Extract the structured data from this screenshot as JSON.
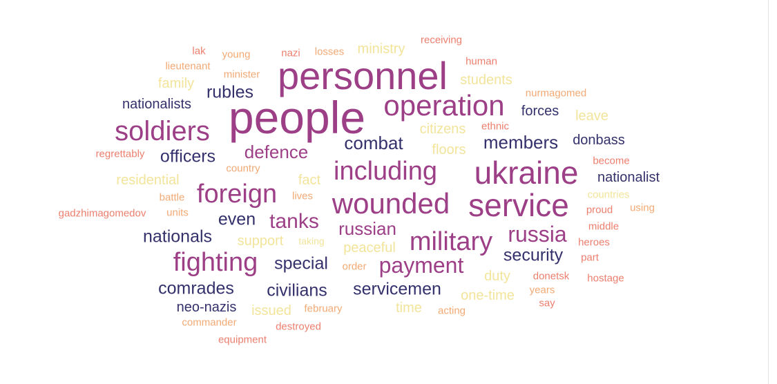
{
  "palette": {
    "navy": "#33306b",
    "magenta": "#9c3f86",
    "salmon": "#ec7f6e",
    "peach": "#f2a974",
    "yellow": "#f2e49b"
  },
  "words": [
    {
      "text": "people",
      "color": "magenta"
    },
    {
      "text": "personnel",
      "color": "magenta"
    },
    {
      "text": "ukraine",
      "color": "magenta"
    },
    {
      "text": "service",
      "color": "magenta"
    },
    {
      "text": "wounded",
      "color": "magenta"
    },
    {
      "text": "operation",
      "color": "magenta"
    },
    {
      "text": "soldiers",
      "color": "magenta"
    },
    {
      "text": "military",
      "color": "magenta"
    },
    {
      "text": "including",
      "color": "magenta"
    },
    {
      "text": "fighting",
      "color": "magenta"
    },
    {
      "text": "foreign",
      "color": "magenta"
    },
    {
      "text": "payment",
      "color": "magenta"
    },
    {
      "text": "russia",
      "color": "magenta"
    },
    {
      "text": "tanks",
      "color": "magenta"
    },
    {
      "text": "defence",
      "color": "magenta"
    },
    {
      "text": "russian",
      "color": "magenta"
    },
    {
      "text": "combat",
      "color": "navy"
    },
    {
      "text": "members",
      "color": "navy"
    },
    {
      "text": "officers",
      "color": "navy"
    },
    {
      "text": "rubles",
      "color": "navy"
    },
    {
      "text": "security",
      "color": "navy"
    },
    {
      "text": "nationals",
      "color": "navy"
    },
    {
      "text": "special",
      "color": "navy"
    },
    {
      "text": "civilians",
      "color": "navy"
    },
    {
      "text": "comrades",
      "color": "navy"
    },
    {
      "text": "servicemen",
      "color": "navy"
    },
    {
      "text": "even",
      "color": "navy"
    },
    {
      "text": "nationalists",
      "color": "navy"
    },
    {
      "text": "forces",
      "color": "navy"
    },
    {
      "text": "donbass",
      "color": "navy"
    },
    {
      "text": "nationalist",
      "color": "navy"
    },
    {
      "text": "neo-nazis",
      "color": "navy"
    },
    {
      "text": "ministry",
      "color": "yellow"
    },
    {
      "text": "students",
      "color": "yellow"
    },
    {
      "text": "family",
      "color": "yellow"
    },
    {
      "text": "leave",
      "color": "yellow"
    },
    {
      "text": "citizens",
      "color": "yellow"
    },
    {
      "text": "floors",
      "color": "yellow"
    },
    {
      "text": "residential",
      "color": "yellow"
    },
    {
      "text": "fact",
      "color": "yellow"
    },
    {
      "text": "support",
      "color": "yellow"
    },
    {
      "text": "peaceful",
      "color": "yellow"
    },
    {
      "text": "taking",
      "color": "yellow"
    },
    {
      "text": "duty",
      "color": "yellow"
    },
    {
      "text": "one-time",
      "color": "yellow"
    },
    {
      "text": "issued",
      "color": "yellow"
    },
    {
      "text": "time",
      "color": "yellow"
    },
    {
      "text": "countries",
      "color": "yellow"
    },
    {
      "text": "receiving",
      "color": "salmon"
    },
    {
      "text": "lak",
      "color": "salmon"
    },
    {
      "text": "young",
      "color": "peach"
    },
    {
      "text": "nazi",
      "color": "salmon"
    },
    {
      "text": "losses",
      "color": "peach"
    },
    {
      "text": "human",
      "color": "salmon"
    },
    {
      "text": "lieutenant",
      "color": "peach"
    },
    {
      "text": "minister",
      "color": "peach"
    },
    {
      "text": "nurmagomed",
      "color": "peach"
    },
    {
      "text": "ethnic",
      "color": "salmon"
    },
    {
      "text": "regrettably",
      "color": "salmon"
    },
    {
      "text": "country",
      "color": "peach"
    },
    {
      "text": "become",
      "color": "salmon"
    },
    {
      "text": "battle",
      "color": "peach"
    },
    {
      "text": "lives",
      "color": "peach"
    },
    {
      "text": "proud",
      "color": "salmon"
    },
    {
      "text": "using",
      "color": "peach"
    },
    {
      "text": "gadzhimagomedov",
      "color": "salmon"
    },
    {
      "text": "units",
      "color": "peach"
    },
    {
      "text": "middle",
      "color": "salmon"
    },
    {
      "text": "heroes",
      "color": "salmon"
    },
    {
      "text": "order",
      "color": "peach"
    },
    {
      "text": "part",
      "color": "salmon"
    },
    {
      "text": "donetsk",
      "color": "salmon"
    },
    {
      "text": "hostage",
      "color": "salmon"
    },
    {
      "text": "years",
      "color": "peach"
    },
    {
      "text": "say",
      "color": "salmon"
    },
    {
      "text": "february",
      "color": "peach"
    },
    {
      "text": "acting",
      "color": "peach"
    },
    {
      "text": "commander",
      "color": "peach"
    },
    {
      "text": "destroyed",
      "color": "salmon"
    },
    {
      "text": "equipment",
      "color": "salmon"
    }
  ]
}
